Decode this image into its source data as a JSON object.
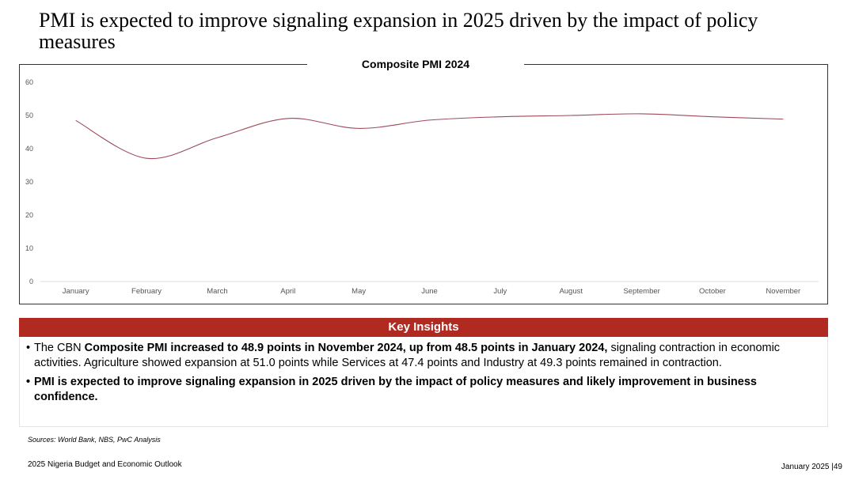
{
  "page": {
    "title": "PMI is expected to improve signaling expansion in 2025 driven by the impact of policy measures",
    "sources": "Sources: World Bank, NBS, PwC Analysis",
    "footer_left": "2025 Nigeria Budget and Economic Outlook",
    "footer_right": "January 2025 |49"
  },
  "colors": {
    "line": "#9b4a5a",
    "accent": "#b02a22",
    "grid": "#e6e6e6"
  },
  "chart_data": {
    "type": "line",
    "title": "Composite PMI 2024",
    "categories": [
      "January",
      "February",
      "March",
      "April",
      "May",
      "June",
      "July",
      "August",
      "September",
      "October",
      "November"
    ],
    "series": [
      {
        "values": [
          48.5,
          37.1,
          43.3,
          49.1,
          46.1,
          48.6,
          49.6,
          50.0,
          50.5,
          49.6,
          48.9
        ]
      }
    ],
    "ylim": [
      0,
      60
    ],
    "yticks": [
      0,
      10,
      20,
      30,
      40,
      50,
      60
    ],
    "grid": false,
    "xlabel": "",
    "ylabel": ""
  },
  "insights": {
    "header": "Key Insights",
    "b1_prefix": "The CBN ",
    "b1_bold": "Composite PMI increased to 48.9 points in November 2024, up from 48.5 points in January 2024,",
    "b1_suffix": " signaling contraction in economic activities. Agriculture showed expansion at 51.0 points while Services at 47.4 points and Industry at 49.3 points remained in contraction.",
    "b2_bold": "PMI is expected to improve signaling expansion in 2025 driven by the impact of policy measures and likely improvement in business confidence."
  }
}
